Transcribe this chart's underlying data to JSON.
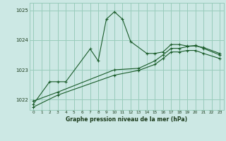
{
  "xlabel": "Graphe pression niveau de la mer (hPa)",
  "bg_color": "#cce8e4",
  "grid_color": "#99ccbb",
  "line_color": "#1a5c2a",
  "ylim": [
    1021.65,
    1025.25
  ],
  "xlim": [
    -0.5,
    23.5
  ],
  "yticks": [
    1022,
    1023,
    1024,
    1025
  ],
  "xticks": [
    0,
    1,
    2,
    3,
    4,
    5,
    6,
    7,
    8,
    9,
    10,
    11,
    12,
    13,
    14,
    15,
    16,
    17,
    18,
    19,
    20,
    21,
    22,
    23
  ],
  "series1_x": [
    0,
    2,
    3,
    4,
    7,
    8,
    9,
    10,
    11,
    12,
    14,
    15,
    16,
    17,
    18,
    19,
    20,
    21,
    23
  ],
  "series1_y": [
    1021.85,
    1022.6,
    1022.6,
    1022.6,
    1023.7,
    1023.3,
    1024.7,
    1024.95,
    1024.7,
    1023.95,
    1023.55,
    1023.55,
    1023.6,
    1023.85,
    1023.85,
    1023.8,
    1023.8,
    1023.75,
    1023.55
  ],
  "series2_x": [
    0,
    3,
    10,
    13,
    15,
    16,
    17,
    18,
    19,
    20,
    21,
    23
  ],
  "series2_y": [
    1021.95,
    1022.25,
    1023.0,
    1023.05,
    1023.3,
    1023.5,
    1023.72,
    1023.72,
    1023.78,
    1023.82,
    1023.72,
    1023.5
  ],
  "series3_x": [
    0,
    3,
    10,
    13,
    15,
    16,
    17,
    18,
    19,
    20,
    21,
    23
  ],
  "series3_y": [
    1021.75,
    1022.15,
    1022.82,
    1022.98,
    1023.18,
    1023.38,
    1023.6,
    1023.6,
    1023.65,
    1023.65,
    1023.55,
    1023.38
  ]
}
